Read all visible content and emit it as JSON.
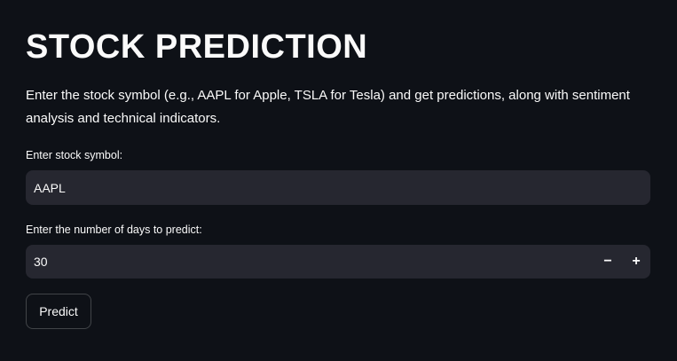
{
  "page": {
    "title": "STOCK PREDICTION",
    "description": "Enter the stock symbol (e.g., AAPL for Apple, TSLA for Tesla) and get predictions, along with sentiment analysis and technical indicators."
  },
  "symbol_field": {
    "label": "Enter stock symbol:",
    "value": "AAPL"
  },
  "days_field": {
    "label": "Enter the number of days to predict:",
    "value": "30",
    "decrement_label": "−",
    "increment_label": "+"
  },
  "predict_button": {
    "label": "Predict"
  },
  "colors": {
    "background": "#0e1117",
    "input_background": "#262730",
    "text": "#fafafa"
  }
}
